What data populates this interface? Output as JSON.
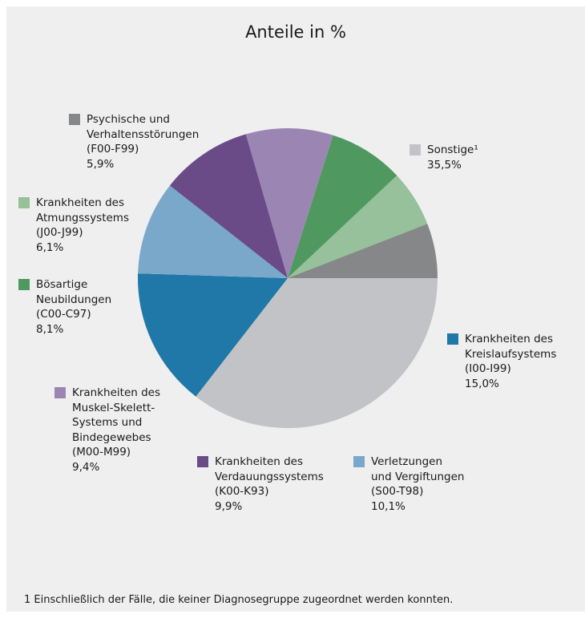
{
  "chart_data": {
    "type": "pie",
    "title": "Anteile in %",
    "slices": [
      {
        "lines": [
          "Sonstige¹",
          "35,5%"
        ],
        "value": 35.5,
        "color": "#c2c3c6"
      },
      {
        "lines": [
          "Krankheiten des",
          "Kreislaufsystems",
          "(I00-I99)",
          "15,0%"
        ],
        "value": 15.0,
        "color": "#1f78a8"
      },
      {
        "lines": [
          "Verletzungen",
          "und Vergiftungen",
          "(S00-T98)",
          "10,1%"
        ],
        "value": 10.1,
        "color": "#7aa8cb"
      },
      {
        "lines": [
          "Krankheiten des",
          "Verdauungssystems",
          "(K00-K93)",
          "9,9%"
        ],
        "value": 9.9,
        "color": "#6a4b87"
      },
      {
        "lines": [
          "Krankheiten des",
          "Muskel-Skelett-",
          "Systems und",
          "Bindegewebes",
          "(M00-M99)",
          "9,4%"
        ],
        "value": 9.4,
        "color": "#9b86b3"
      },
      {
        "lines": [
          "Bösartige",
          "Neubildungen",
          "(C00-C97)",
          "8,1%"
        ],
        "value": 8.1,
        "color": "#4f9960"
      },
      {
        "lines": [
          "Krankheiten des",
          "Atmungssystems",
          "(J00-J99)",
          "6,1%"
        ],
        "value": 6.1,
        "color": "#96c19a"
      },
      {
        "lines": [
          "Psychische und",
          "Verhaltensstörungen",
          "(F00-F99)",
          "5,9%"
        ],
        "value": 5.9,
        "color": "#858789"
      }
    ],
    "start_angle": "3 o'clock",
    "direction": "clockwise"
  },
  "footnote": "1 Einschließlich der Fälle, die keiner Diagnosegruppe zugeordnet werden konnten."
}
